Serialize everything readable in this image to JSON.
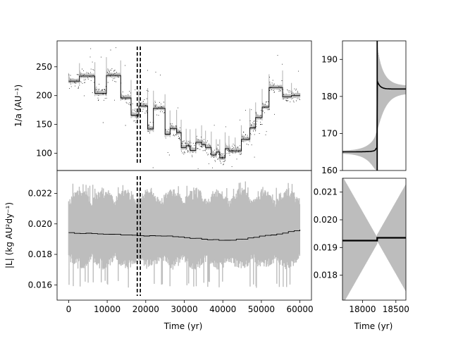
{
  "chart_data": [
    {
      "id": "top_left",
      "type": "line",
      "ylabel": "1/a (AU⁻¹)",
      "xlim": [
        -3000,
        63000
      ],
      "ylim": [
        70,
        295
      ],
      "yticks": [
        100,
        150,
        200,
        250
      ],
      "ytick_labels": [
        "100",
        "150",
        "200",
        "250"
      ],
      "vlines": [
        17800,
        18600
      ],
      "step_series": [
        {
          "x0": 0,
          "x1": 2800,
          "y": 225
        },
        {
          "x0": 2800,
          "x1": 6800,
          "y": 234
        },
        {
          "x0": 6800,
          "x1": 9800,
          "y": 204
        },
        {
          "x0": 9800,
          "x1": 13500,
          "y": 235
        },
        {
          "x0": 13500,
          "x1": 16200,
          "y": 196
        },
        {
          "x0": 16200,
          "x1": 18200,
          "y": 166
        },
        {
          "x0": 18200,
          "x1": 20500,
          "y": 182
        },
        {
          "x0": 20500,
          "x1": 22000,
          "y": 142
        },
        {
          "x0": 22000,
          "x1": 25000,
          "y": 178
        },
        {
          "x0": 25000,
          "x1": 26300,
          "y": 133
        },
        {
          "x0": 26300,
          "x1": 28000,
          "y": 143
        },
        {
          "x0": 28000,
          "x1": 29200,
          "y": 136
        },
        {
          "x0": 29200,
          "x1": 30500,
          "y": 110
        },
        {
          "x0": 30500,
          "x1": 31500,
          "y": 113
        },
        {
          "x0": 31500,
          "x1": 33000,
          "y": 105
        },
        {
          "x0": 33000,
          "x1": 34500,
          "y": 119
        },
        {
          "x0": 34500,
          "x1": 35500,
          "y": 115
        },
        {
          "x0": 35500,
          "x1": 37000,
          "y": 110
        },
        {
          "x0": 37000,
          "x1": 38300,
          "y": 97
        },
        {
          "x0": 38300,
          "x1": 39200,
          "y": 102
        },
        {
          "x0": 39200,
          "x1": 40600,
          "y": 92
        },
        {
          "x0": 40600,
          "x1": 41600,
          "y": 108
        },
        {
          "x0": 41600,
          "x1": 43200,
          "y": 104
        },
        {
          "x0": 43200,
          "x1": 44800,
          "y": 104
        },
        {
          "x0": 44800,
          "x1": 47000,
          "y": 124
        },
        {
          "x0": 47000,
          "x1": 48500,
          "y": 144
        },
        {
          "x0": 48500,
          "x1": 50200,
          "y": 162
        },
        {
          "x0": 50200,
          "x1": 52000,
          "y": 180
        },
        {
          "x0": 52000,
          "x1": 55500,
          "y": 214
        },
        {
          "x0": 55500,
          "x1": 57800,
          "y": 198
        },
        {
          "x0": 57800,
          "x1": 60000,
          "y": 200
        }
      ]
    },
    {
      "id": "top_right",
      "type": "line",
      "xlim": [
        17700,
        18650
      ],
      "ylim": [
        160,
        195
      ],
      "yticks": [
        160,
        170,
        180,
        190
      ],
      "ytick_labels": [
        "160",
        "170",
        "180",
        "190"
      ],
      "jump_x": 18220,
      "before_level": 165,
      "after_level": 182
    },
    {
      "id": "bottom_left",
      "type": "line",
      "xlabel": "Time (yr)",
      "ylabel": "|L| (kg AU²dy⁻¹)",
      "xlim": [
        -3000,
        63000
      ],
      "ylim": [
        0.015,
        0.0235
      ],
      "xticks": [
        0,
        10000,
        20000,
        30000,
        40000,
        50000,
        60000
      ],
      "xtick_labels": [
        "0",
        "10000",
        "20000",
        "30000",
        "40000",
        "50000",
        "60000"
      ],
      "yticks": [
        0.016,
        0.018,
        0.02,
        0.022
      ],
      "ytick_labels": [
        "0.016",
        "0.018",
        "0.020",
        "0.022"
      ],
      "vlines": [
        17800,
        18600
      ],
      "mean_series": {
        "x": [
          0,
          5000,
          10000,
          15000,
          20000,
          25000,
          30000,
          35000,
          40000,
          45000,
          50000,
          55000,
          60000
        ],
        "y": [
          0.0194,
          0.01937,
          0.01933,
          0.0193,
          0.0192,
          0.0192,
          0.0191,
          0.019,
          0.0189,
          0.019,
          0.0192,
          0.0194,
          0.0196
        ]
      },
      "band": {
        "upper": 0.0222,
        "lower": 0.0172,
        "extreme_upper": 0.0228,
        "extreme_lower": 0.0158
      }
    },
    {
      "id": "bottom_right",
      "type": "line",
      "xlabel": "Time (yr)",
      "xlim": [
        17700,
        18650
      ],
      "ylim": [
        0.0171,
        0.0215
      ],
      "xticks": [
        18000,
        18500
      ],
      "xtick_labels": [
        "18000",
        "18500"
      ],
      "yticks": [
        0.018,
        0.019,
        0.02,
        0.021
      ],
      "ytick_labels": [
        "0.018",
        "0.019",
        "0.020",
        "0.021"
      ],
      "jump_x": 18220,
      "before_level": 0.01925,
      "after_level": 0.01935
    }
  ]
}
